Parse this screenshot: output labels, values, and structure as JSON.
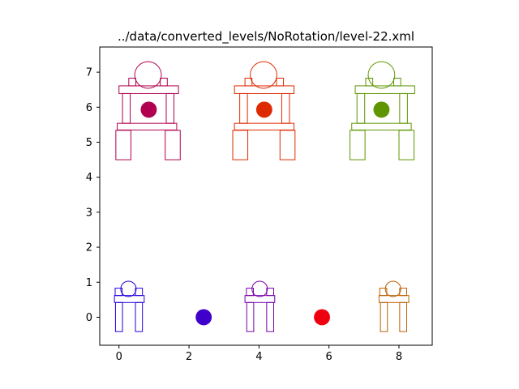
{
  "chart_data": {
    "type": "scatter",
    "title": "../data/converted_levels/NoRotation/level-22.xml",
    "xlabel": "",
    "ylabel": "",
    "xlim": [
      -0.55,
      8.95
    ],
    "ylim": [
      -0.8,
      7.72
    ],
    "x_ticks": [
      0,
      2,
      4,
      6,
      8
    ],
    "y_ticks": [
      0,
      1,
      2,
      3,
      4,
      5,
      6,
      7
    ],
    "grid": false,
    "series": [
      {
        "color": "#b0004f",
        "filled_circles": [
          {
            "x": 0.85,
            "y": 5.93,
            "r": 0.23
          }
        ],
        "outline_circles": [
          {
            "x": 0.83,
            "y": 6.92,
            "r": 0.38
          }
        ],
        "rectangles": [
          {
            "x": -0.09,
            "y": 4.5,
            "w": 0.43,
            "h": 0.84
          },
          {
            "x": 1.32,
            "y": 4.5,
            "w": 0.43,
            "h": 0.84
          },
          {
            "x": -0.05,
            "y": 5.35,
            "w": 1.7,
            "h": 0.19
          },
          {
            "x": 0.1,
            "y": 5.54,
            "w": 0.22,
            "h": 0.85
          },
          {
            "x": 1.35,
            "y": 5.54,
            "w": 0.22,
            "h": 0.85
          },
          {
            "x": 0.0,
            "y": 6.39,
            "w": 1.7,
            "h": 0.22
          },
          {
            "x": 0.28,
            "y": 6.61,
            "w": 0.2,
            "h": 0.22
          },
          {
            "x": 1.18,
            "y": 6.61,
            "w": 0.2,
            "h": 0.22
          }
        ]
      },
      {
        "color": "#dd2a00",
        "filled_circles": [
          {
            "x": 4.15,
            "y": 5.93,
            "r": 0.23
          }
        ],
        "outline_circles": [
          {
            "x": 4.13,
            "y": 6.92,
            "r": 0.38
          }
        ],
        "rectangles": [
          {
            "x": 3.25,
            "y": 4.5,
            "w": 0.43,
            "h": 0.84
          },
          {
            "x": 4.6,
            "y": 4.5,
            "w": 0.43,
            "h": 0.84
          },
          {
            "x": 3.3,
            "y": 5.35,
            "w": 1.7,
            "h": 0.19
          },
          {
            "x": 3.45,
            "y": 5.54,
            "w": 0.22,
            "h": 0.85
          },
          {
            "x": 4.65,
            "y": 5.54,
            "w": 0.22,
            "h": 0.85
          },
          {
            "x": 3.3,
            "y": 6.39,
            "w": 1.7,
            "h": 0.22
          },
          {
            "x": 3.6,
            "y": 6.61,
            "w": 0.2,
            "h": 0.22
          },
          {
            "x": 4.5,
            "y": 6.61,
            "w": 0.2,
            "h": 0.22
          }
        ]
      },
      {
        "color": "#5f9500",
        "filled_circles": [
          {
            "x": 7.5,
            "y": 5.93,
            "r": 0.23
          }
        ],
        "outline_circles": [
          {
            "x": 7.5,
            "y": 6.92,
            "r": 0.38
          }
        ],
        "rectangles": [
          {
            "x": 6.6,
            "y": 4.5,
            "w": 0.43,
            "h": 0.84
          },
          {
            "x": 8.0,
            "y": 4.5,
            "w": 0.43,
            "h": 0.84
          },
          {
            "x": 6.65,
            "y": 5.35,
            "w": 1.7,
            "h": 0.19
          },
          {
            "x": 6.8,
            "y": 5.54,
            "w": 0.22,
            "h": 0.85
          },
          {
            "x": 8.02,
            "y": 5.54,
            "w": 0.22,
            "h": 0.85
          },
          {
            "x": 6.75,
            "y": 6.39,
            "w": 1.7,
            "h": 0.22
          },
          {
            "x": 7.05,
            "y": 6.61,
            "w": 0.2,
            "h": 0.22
          },
          {
            "x": 7.85,
            "y": 6.61,
            "w": 0.2,
            "h": 0.22
          }
        ]
      },
      {
        "color": "#2200dd",
        "filled_circles": [],
        "outline_circles": [
          {
            "x": 0.27,
            "y": 0.81,
            "r": 0.22
          }
        ],
        "rectangles": [
          {
            "x": -0.1,
            "y": -0.41,
            "w": 0.2,
            "h": 0.83
          },
          {
            "x": 0.47,
            "y": -0.41,
            "w": 0.2,
            "h": 0.83
          },
          {
            "x": -0.13,
            "y": 0.42,
            "w": 0.85,
            "h": 0.2
          },
          {
            "x": -0.11,
            "y": 0.62,
            "w": 0.2,
            "h": 0.21
          },
          {
            "x": 0.47,
            "y": 0.62,
            "w": 0.2,
            "h": 0.21
          }
        ]
      },
      {
        "color": "#4000cc",
        "filled_circles": [
          {
            "x": 2.42,
            "y": 0.0,
            "r": 0.23
          }
        ],
        "outline_circles": [],
        "rectangles": []
      },
      {
        "color": "#7700aa",
        "filled_circles": [],
        "outline_circles": [
          {
            "x": 4.02,
            "y": 0.81,
            "r": 0.22
          }
        ],
        "rectangles": [
          {
            "x": 3.65,
            "y": -0.41,
            "w": 0.2,
            "h": 0.83
          },
          {
            "x": 4.22,
            "y": -0.41,
            "w": 0.2,
            "h": 0.83
          },
          {
            "x": 3.6,
            "y": 0.42,
            "w": 0.85,
            "h": 0.2
          },
          {
            "x": 3.64,
            "y": 0.62,
            "w": 0.2,
            "h": 0.21
          },
          {
            "x": 4.22,
            "y": 0.62,
            "w": 0.2,
            "h": 0.21
          }
        ]
      },
      {
        "color": "#ee0010",
        "filled_circles": [
          {
            "x": 5.8,
            "y": 0.0,
            "r": 0.23
          }
        ],
        "outline_circles": [],
        "rectangles": []
      },
      {
        "color": "#bb5f00",
        "filled_circles": [],
        "outline_circles": [
          {
            "x": 7.83,
            "y": 0.81,
            "r": 0.22
          }
        ],
        "rectangles": [
          {
            "x": 7.47,
            "y": -0.41,
            "w": 0.2,
            "h": 0.83
          },
          {
            "x": 8.02,
            "y": -0.41,
            "w": 0.2,
            "h": 0.83
          },
          {
            "x": 7.43,
            "y": 0.42,
            "w": 0.85,
            "h": 0.2
          },
          {
            "x": 7.45,
            "y": 0.62,
            "w": 0.2,
            "h": 0.21
          },
          {
            "x": 8.02,
            "y": 0.62,
            "w": 0.2,
            "h": 0.21
          }
        ]
      }
    ]
  }
}
